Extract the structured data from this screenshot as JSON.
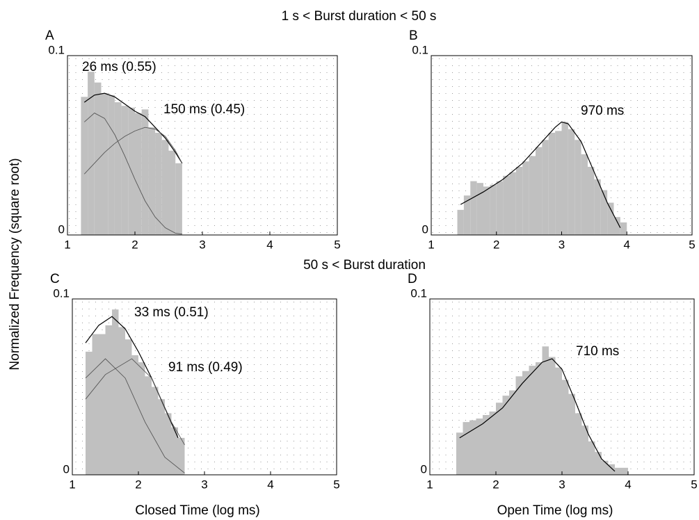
{
  "figure": {
    "title_top": "1 s < Burst duration < 50 s",
    "title_bottom": "50 s < Burst duration",
    "ylabel": "Normalized Frequency (square root)"
  },
  "chart_data": [
    {
      "type": "histogram",
      "label": "A",
      "color": "#c0c0c0",
      "bins": [
        1.2,
        1.3,
        1.4,
        1.5,
        1.6,
        1.7,
        1.8,
        1.9,
        2.0,
        2.1,
        2.2,
        2.3,
        2.4,
        2.5,
        2.6,
        2.7
      ],
      "counts": [
        0.077,
        0.091,
        0.085,
        0.079,
        0.078,
        0.074,
        0.072,
        0.071,
        0.068,
        0.07,
        0.06,
        0.057,
        0.053,
        0.047,
        0.04
      ],
      "fits": [
        {
          "x": [
            1.25,
            1.4,
            1.55,
            1.7,
            1.85,
            2.0,
            2.15,
            2.3,
            2.45,
            2.6,
            2.7
          ],
          "values": [
            0.074,
            0.078,
            0.079,
            0.077,
            0.073,
            0.069,
            0.066,
            0.06,
            0.054,
            0.046,
            0.04
          ]
        },
        {
          "x": [
            1.25,
            1.4,
            1.55,
            1.7,
            1.85,
            2.0,
            2.15,
            2.3,
            2.45,
            2.6,
            2.7
          ],
          "values": [
            0.063,
            0.068,
            0.065,
            0.056,
            0.044,
            0.031,
            0.019,
            0.01,
            0.004,
            0.001,
            0.0005
          ]
        },
        {
          "x": [
            1.25,
            1.4,
            1.55,
            1.7,
            1.85,
            2.0,
            2.15,
            2.3,
            2.45,
            2.6,
            2.7
          ],
          "values": [
            0.034,
            0.04,
            0.046,
            0.051,
            0.055,
            0.058,
            0.06,
            0.059,
            0.055,
            0.047,
            0.04
          ]
        }
      ],
      "annotations": [
        "26 ms (0.55)",
        "150 ms (0.45)"
      ],
      "xlim": [
        1,
        5
      ],
      "ylim": [
        0,
        0.1
      ],
      "xticks": [
        1,
        2,
        3,
        4,
        5
      ],
      "yticks": [
        0,
        0.1
      ]
    },
    {
      "type": "histogram",
      "label": "B",
      "color": "#c0c0c0",
      "bins": [
        1.4,
        1.5,
        1.6,
        1.7,
        1.8,
        1.9,
        2.0,
        2.1,
        2.2,
        2.3,
        2.4,
        2.5,
        2.6,
        2.7,
        2.8,
        2.9,
        3.0,
        3.1,
        3.2,
        3.3,
        3.4,
        3.5,
        3.6,
        3.7,
        3.8,
        3.9,
        4.0
      ],
      "counts": [
        0.014,
        0.022,
        0.03,
        0.029,
        0.027,
        0.028,
        0.03,
        0.033,
        0.035,
        0.038,
        0.041,
        0.044,
        0.049,
        0.053,
        0.057,
        0.058,
        0.063,
        0.059,
        0.053,
        0.045,
        0.038,
        0.031,
        0.025,
        0.018,
        0.01,
        0.007
      ],
      "fits": [
        {
          "x": [
            1.45,
            1.8,
            2.1,
            2.4,
            2.7,
            2.9,
            3.0,
            3.1,
            3.3,
            3.5,
            3.7,
            3.9
          ],
          "values": [
            0.017,
            0.024,
            0.031,
            0.04,
            0.052,
            0.06,
            0.063,
            0.062,
            0.052,
            0.035,
            0.018,
            0.004
          ]
        }
      ],
      "annotations": [
        "970 ms"
      ],
      "xlim": [
        1,
        5
      ],
      "ylim": [
        0,
        0.1
      ],
      "xticks": [
        1,
        2,
        3,
        4,
        5
      ],
      "yticks": [
        0,
        0.1
      ]
    },
    {
      "type": "histogram",
      "label": "C",
      "color": "#c0c0c0",
      "xlabel": "Closed  Time (log ms)",
      "bins": [
        1.2,
        1.3,
        1.4,
        1.5,
        1.6,
        1.7,
        1.8,
        1.9,
        2.0,
        2.1,
        2.2,
        2.3,
        2.4,
        2.5,
        2.6,
        2.7
      ],
      "counts": [
        0.07,
        0.08,
        0.08,
        0.085,
        0.094,
        0.084,
        0.077,
        0.068,
        0.064,
        0.056,
        0.05,
        0.043,
        0.035,
        0.027,
        0.021
      ],
      "fits": [
        {
          "x": [
            1.2,
            1.4,
            1.6,
            1.8,
            2.0,
            2.2,
            2.4,
            2.6
          ],
          "values": [
            0.075,
            0.085,
            0.09,
            0.083,
            0.07,
            0.055,
            0.038,
            0.021
          ]
        },
        {
          "x": [
            1.2,
            1.5,
            1.8,
            2.1,
            2.4,
            2.7
          ],
          "values": [
            0.055,
            0.066,
            0.055,
            0.03,
            0.01,
            0.001
          ]
        },
        {
          "x": [
            1.2,
            1.5,
            1.9,
            2.2,
            2.5,
            2.7
          ],
          "values": [
            0.043,
            0.057,
            0.066,
            0.055,
            0.03,
            0.017
          ]
        }
      ],
      "annotations": [
        "33 ms (0.51)",
        "91 ms (0.49)"
      ],
      "xlim": [
        1,
        5
      ],
      "ylim": [
        0,
        0.1
      ],
      "xticks": [
        1,
        2,
        3,
        4,
        5
      ],
      "yticks": [
        0,
        0.1
      ]
    },
    {
      "type": "histogram",
      "label": "D",
      "color": "#c0c0c0",
      "xlabel": "Open  Time (log ms)",
      "bins": [
        1.4,
        1.5,
        1.6,
        1.7,
        1.8,
        1.9,
        2.0,
        2.1,
        2.2,
        2.3,
        2.4,
        2.5,
        2.6,
        2.7,
        2.8,
        2.9,
        3.0,
        3.1,
        3.2,
        3.3,
        3.4,
        3.5,
        3.6,
        3.7,
        3.8,
        3.9,
        4.0
      ],
      "counts": [
        0.024,
        0.03,
        0.031,
        0.032,
        0.034,
        0.036,
        0.041,
        0.045,
        0.048,
        0.056,
        0.059,
        0.062,
        0.064,
        0.073,
        0.067,
        0.061,
        0.054,
        0.046,
        0.035,
        0.028,
        0.019,
        0.013,
        0.008,
        0.006,
        0.004,
        0.004
      ],
      "fits": [
        {
          "x": [
            1.45,
            1.8,
            2.1,
            2.4,
            2.7,
            2.85,
            3.0,
            3.2,
            3.4,
            3.6,
            3.8
          ],
          "values": [
            0.021,
            0.029,
            0.038,
            0.052,
            0.064,
            0.066,
            0.06,
            0.042,
            0.023,
            0.009,
            0.002
          ]
        }
      ],
      "annotations": [
        "710 ms"
      ],
      "xlim": [
        1,
        5
      ],
      "ylim": [
        0,
        0.1
      ],
      "xticks": [
        1,
        2,
        3,
        4,
        5
      ],
      "yticks": [
        0,
        0.1
      ]
    }
  ]
}
